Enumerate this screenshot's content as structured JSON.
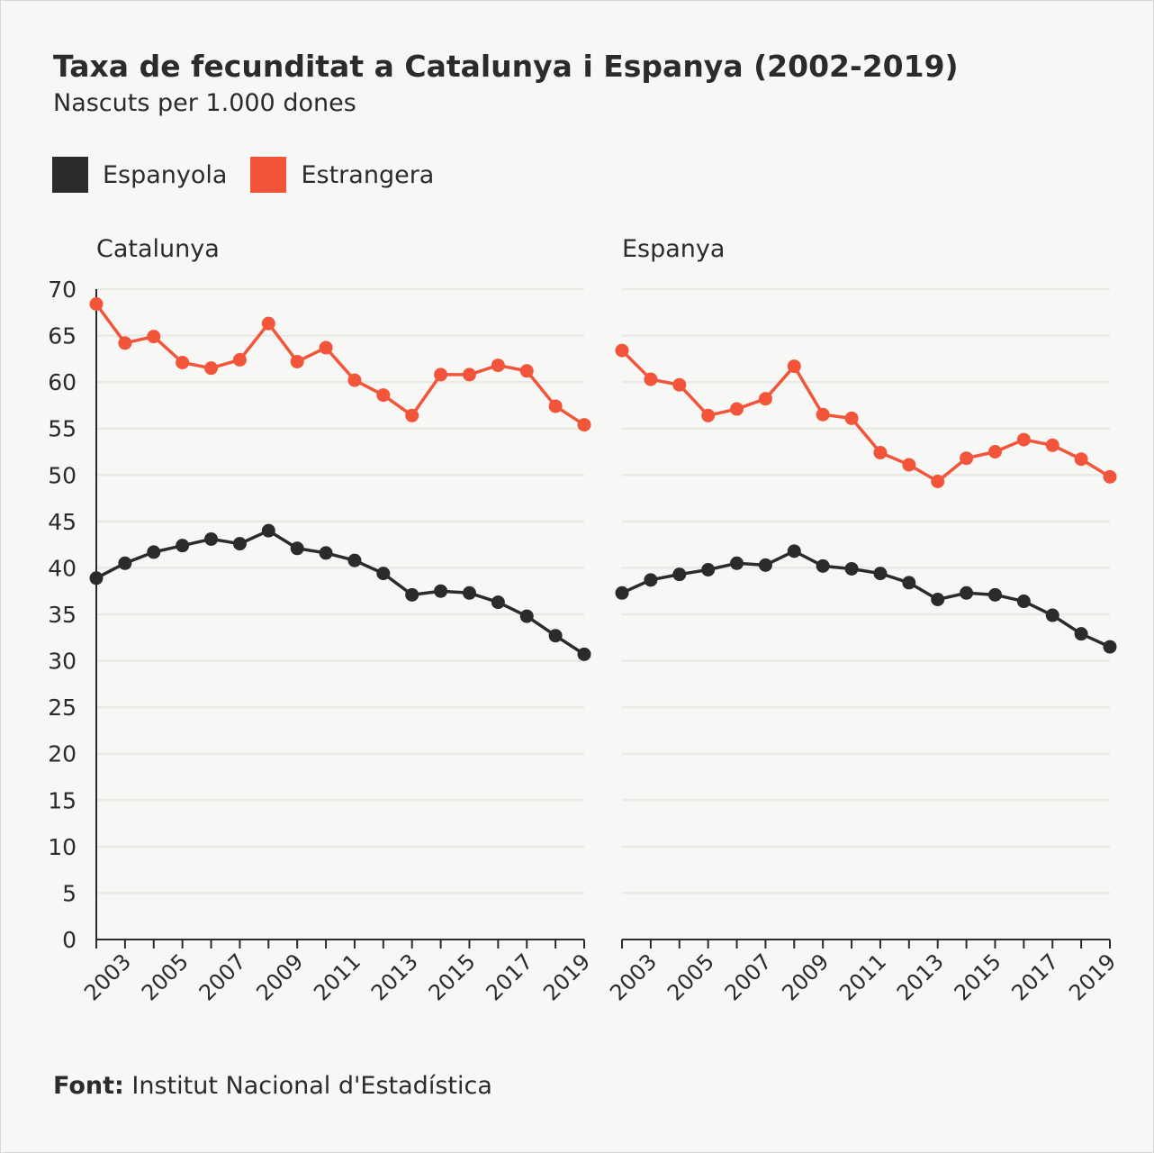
{
  "title": "Taxa de fecunditat a Catalunya i Espanya (2002-2019)",
  "subtitle": "Nascuts per 1.000 dones",
  "source_label": "Font:",
  "source_text": " Institut Nacional d'Estadística",
  "legend": [
    {
      "label": "Espanyola",
      "color": "#2b2b2b"
    },
    {
      "label": "Estrangera",
      "color": "#f2553a"
    }
  ],
  "chart_data": [
    {
      "type": "line",
      "title": "Catalunya",
      "ylim": [
        0,
        70
      ],
      "yticks": [
        0,
        5,
        10,
        15,
        20,
        25,
        30,
        35,
        40,
        45,
        50,
        55,
        60,
        65,
        70
      ],
      "x": [
        2002,
        2003,
        2004,
        2005,
        2006,
        2007,
        2008,
        2009,
        2010,
        2011,
        2012,
        2013,
        2014,
        2015,
        2016,
        2017,
        2018,
        2019
      ],
      "xtick_labels": [
        "2003",
        "2005",
        "2007",
        "2009",
        "2011",
        "2013",
        "2015",
        "2017",
        "2019"
      ],
      "grid": "horizontal",
      "series": [
        {
          "name": "Espanyola",
          "color": "#2b2b2b",
          "values": [
            38.9,
            40.5,
            41.7,
            42.4,
            43.1,
            42.6,
            44.0,
            42.1,
            41.6,
            40.8,
            39.4,
            37.1,
            37.5,
            37.3,
            36.3,
            34.8,
            32.7,
            30.7
          ]
        },
        {
          "name": "Estrangera",
          "color": "#f2553a",
          "values": [
            68.4,
            64.2,
            64.9,
            62.1,
            61.5,
            62.4,
            66.3,
            62.2,
            63.7,
            60.2,
            58.6,
            56.4,
            60.8,
            60.8,
            61.8,
            61.2,
            57.4,
            55.4
          ]
        }
      ]
    },
    {
      "type": "line",
      "title": "Espanya",
      "ylim": [
        0,
        70
      ],
      "x": [
        2002,
        2003,
        2004,
        2005,
        2006,
        2007,
        2008,
        2009,
        2010,
        2011,
        2012,
        2013,
        2014,
        2015,
        2016,
        2017,
        2018,
        2019
      ],
      "xtick_labels": [
        "2003",
        "2005",
        "2007",
        "2009",
        "2011",
        "2013",
        "2015",
        "2017",
        "2019"
      ],
      "grid": "horizontal",
      "series": [
        {
          "name": "Espanyola",
          "color": "#2b2b2b",
          "values": [
            37.3,
            38.7,
            39.3,
            39.8,
            40.5,
            40.3,
            41.8,
            40.2,
            39.9,
            39.4,
            38.4,
            36.6,
            37.3,
            37.1,
            36.4,
            34.9,
            32.9,
            31.5
          ]
        },
        {
          "name": "Estrangera",
          "color": "#f2553a",
          "values": [
            63.4,
            60.3,
            59.7,
            56.4,
            57.1,
            58.2,
            61.7,
            56.5,
            56.1,
            52.4,
            51.1,
            49.3,
            51.8,
            52.5,
            53.8,
            53.2,
            51.7,
            49.8
          ]
        }
      ]
    }
  ]
}
